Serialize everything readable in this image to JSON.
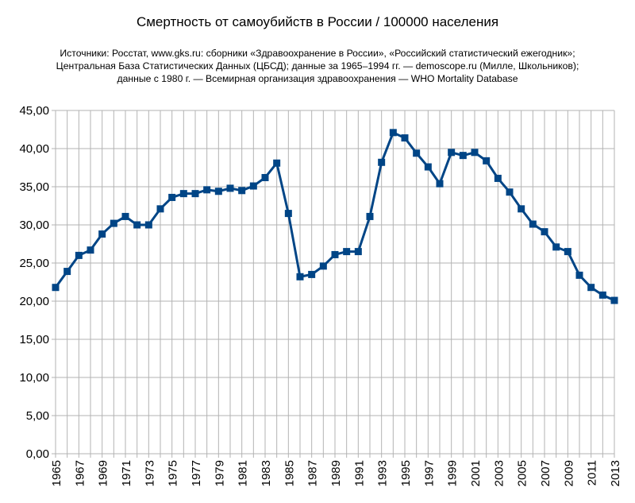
{
  "chart_data": {
    "type": "line",
    "title": "Смертность от самоубийств в России / 100000 населения",
    "sources": [
      "Источники: Росстат, www.gks.ru: сборники «Здравоохранение в России», «Российский статистический ежегодник»;",
      "Центральная База Статистических Данных (ЦБСД);  данные за 1965–1994 гг. — demoscope.ru (Милле, Школьников);",
      "данные с 1980 г. — Всемирная организация здравоохранения — WHO Mortality Database"
    ],
    "xlim": [
      1965,
      2013
    ],
    "ylim": [
      0,
      45
    ],
    "yticks": [
      "0,00",
      "5,00",
      "10,00",
      "15,00",
      "20,00",
      "25,00",
      "30,00",
      "35,00",
      "40,00",
      "45,00"
    ],
    "xticks": [
      "1965",
      "1967",
      "1969",
      "1971",
      "1973",
      "1975",
      "1977",
      "1979",
      "1981",
      "1983",
      "1985",
      "1987",
      "1989",
      "1991",
      "1993",
      "1995",
      "1997",
      "1999",
      "2001",
      "2003",
      "2005",
      "2007",
      "2009",
      "2011",
      "2013"
    ],
    "grid": true,
    "color": "#004586",
    "x": [
      1965,
      1966,
      1967,
      1968,
      1969,
      1970,
      1971,
      1972,
      1973,
      1974,
      1975,
      1976,
      1977,
      1978,
      1979,
      1980,
      1981,
      1982,
      1983,
      1984,
      1985,
      1986,
      1987,
      1988,
      1989,
      1990,
      1991,
      1992,
      1993,
      1994,
      1995,
      1996,
      1997,
      1998,
      1999,
      2000,
      2001,
      2002,
      2003,
      2004,
      2005,
      2006,
      2007,
      2008,
      2009,
      2010,
      2011,
      2012,
      2013
    ],
    "values": [
      21.8,
      23.9,
      26.0,
      26.7,
      28.8,
      30.2,
      31.1,
      30.0,
      30.0,
      32.1,
      33.6,
      34.1,
      34.1,
      34.6,
      34.4,
      34.8,
      34.5,
      35.1,
      36.2,
      38.1,
      31.5,
      23.2,
      23.5,
      24.6,
      26.1,
      26.5,
      26.5,
      31.1,
      38.2,
      42.1,
      41.4,
      39.4,
      37.6,
      35.4,
      39.5,
      39.1,
      39.5,
      38.4,
      36.1,
      34.3,
      32.1,
      30.1,
      29.1,
      27.1,
      26.5,
      23.4,
      21.8,
      20.8,
      20.1
    ]
  }
}
